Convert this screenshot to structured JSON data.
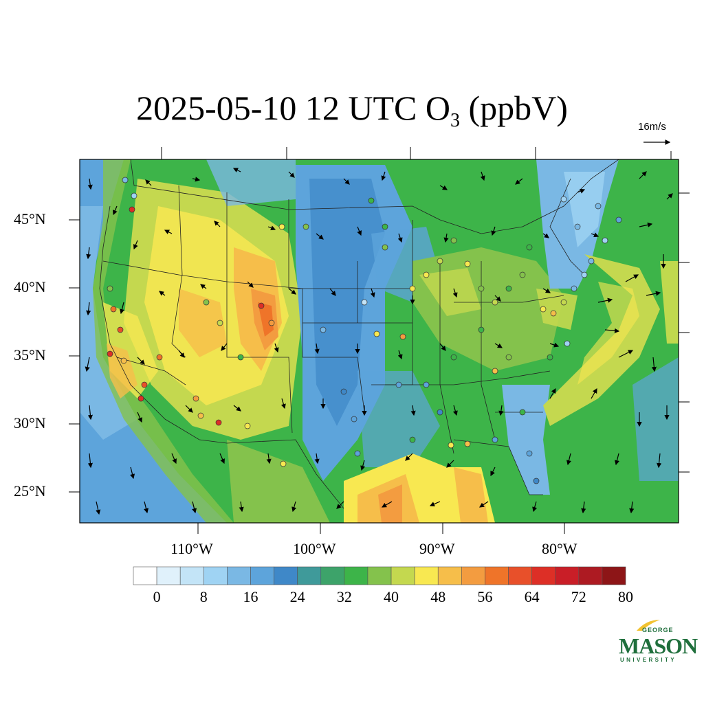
{
  "title": {
    "prefix": "2025-05-10 12 UTC O",
    "subscript": "3",
    "suffix": " (ppbV)"
  },
  "reference_vector": {
    "label": "16m/s"
  },
  "axes": {
    "latitude_labels": [
      "45°N",
      "40°N",
      "35°N",
      "30°N",
      "25°N"
    ],
    "longitude_labels": [
      "110°W",
      "100°W",
      "90°W",
      "80°W"
    ]
  },
  "colorbar": {
    "tick_labels": [
      "0",
      "8",
      "16",
      "24",
      "32",
      "40",
      "48",
      "56",
      "64",
      "72",
      "80"
    ],
    "colors": [
      "#ffffff",
      "#e0f1fb",
      "#c3e4f7",
      "#9fd3f3",
      "#7ab8e4",
      "#5da4db",
      "#3f88c8",
      "#3f9a9a",
      "#3da36a",
      "#3db449",
      "#84c24c",
      "#c4d84f",
      "#f8e851",
      "#f6be4a",
      "#f39c40",
      "#ef7429",
      "#e8502a",
      "#dd2f26",
      "#c91e27",
      "#ad1a22",
      "#8d1517"
    ]
  },
  "logo": {
    "line1": "GEORGE",
    "line2": "MASON",
    "line3": "UNIVERSITY",
    "color": "#1f6f3c"
  }
}
